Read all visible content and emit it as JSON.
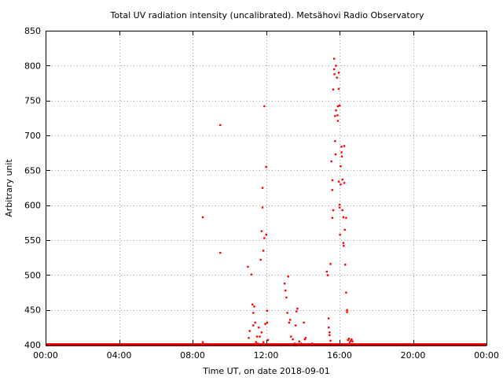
{
  "colors": {
    "series": "#ff0000",
    "grid": "#a0a0a0",
    "frame": "#000000",
    "background": "#ffffff"
  },
  "chart_data": {
    "type": "scatter",
    "title": "Total UV radiation intensity (uncalibrated). Metsähovi Radio Observatory",
    "xlabel": "Time UT, on date 2018-09-01",
    "ylabel": "Arbitrary unit",
    "x_unit": "hours UT",
    "xlim": [
      0,
      24
    ],
    "ylim": [
      400,
      850
    ],
    "grid": true,
    "legend": "none",
    "x_ticks": [
      {
        "value": 0,
        "label": "00:00"
      },
      {
        "value": 4,
        "label": "04:00"
      },
      {
        "value": 8,
        "label": "08:00"
      },
      {
        "value": 12,
        "label": "12:00"
      },
      {
        "value": 16,
        "label": "16:00"
      },
      {
        "value": 20,
        "label": "20:00"
      },
      {
        "value": 24,
        "label": "00:00"
      }
    ],
    "y_ticks": [
      {
        "value": 400,
        "label": "400"
      },
      {
        "value": 450,
        "label": "450"
      },
      {
        "value": 500,
        "label": "500"
      },
      {
        "value": 550,
        "label": "550"
      },
      {
        "value": 600,
        "label": "600"
      },
      {
        "value": 650,
        "label": "650"
      },
      {
        "value": 700,
        "label": "700"
      },
      {
        "value": 750,
        "label": "750"
      },
      {
        "value": 800,
        "label": "800"
      },
      {
        "value": 850,
        "label": "850"
      }
    ],
    "baseline": {
      "from_x": 0,
      "to_x": 24,
      "y": 400
    },
    "series": [
      {
        "points": [
          [
            8.55,
            583
          ],
          [
            8.55,
            404
          ],
          [
            9.5,
            715
          ],
          [
            9.5,
            532
          ],
          [
            11.0,
            512
          ],
          [
            11.05,
            410
          ],
          [
            11.1,
            420
          ],
          [
            11.2,
            501
          ],
          [
            11.25,
            458
          ],
          [
            11.3,
            428
          ],
          [
            11.3,
            446
          ],
          [
            11.35,
            455
          ],
          [
            11.4,
            432
          ],
          [
            11.45,
            404
          ],
          [
            11.5,
            412
          ],
          [
            11.55,
            402
          ],
          [
            11.6,
            425
          ],
          [
            11.7,
            522
          ],
          [
            11.75,
            563
          ],
          [
            11.8,
            597
          ],
          [
            11.8,
            625
          ],
          [
            11.85,
            535
          ],
          [
            11.9,
            553
          ],
          [
            11.9,
            742
          ],
          [
            11.95,
            430
          ],
          [
            12.0,
            655
          ],
          [
            12.0,
            558
          ],
          [
            12.05,
            432
          ],
          [
            12.05,
            449
          ],
          [
            11.65,
            412
          ],
          [
            11.75,
            418
          ],
          [
            12.1,
            407
          ],
          [
            11.85,
            404
          ],
          [
            13.0,
            488
          ],
          [
            13.05,
            478
          ],
          [
            13.1,
            468
          ],
          [
            13.15,
            446
          ],
          [
            13.2,
            498
          ],
          [
            13.25,
            432
          ],
          [
            13.3,
            436
          ],
          [
            13.35,
            412
          ],
          [
            13.45,
            408
          ],
          [
            13.55,
            402
          ],
          [
            13.6,
            428
          ],
          [
            13.65,
            448
          ],
          [
            13.7,
            452
          ],
          [
            13.8,
            405
          ],
          [
            13.9,
            402
          ],
          [
            14.05,
            432
          ],
          [
            14.1,
            408
          ],
          [
            14.15,
            410
          ],
          [
            14.5,
            402
          ],
          [
            14.9,
            401
          ],
          [
            15.3,
            505
          ],
          [
            15.35,
            500
          ],
          [
            15.4,
            438
          ],
          [
            15.4,
            425
          ],
          [
            15.45,
            418
          ],
          [
            15.45,
            414
          ],
          [
            15.5,
            516
          ],
          [
            15.5,
            406
          ],
          [
            15.55,
            663
          ],
          [
            15.6,
            636
          ],
          [
            15.6,
            622
          ],
          [
            15.6,
            582
          ],
          [
            15.65,
            593
          ],
          [
            15.65,
            766
          ],
          [
            15.7,
            810
          ],
          [
            15.7,
            795
          ],
          [
            15.72,
            788
          ],
          [
            15.75,
            692
          ],
          [
            15.75,
            728
          ],
          [
            15.78,
            673
          ],
          [
            15.8,
            736
          ],
          [
            15.8,
            800
          ],
          [
            15.85,
            783
          ],
          [
            15.88,
            729
          ],
          [
            15.9,
            742
          ],
          [
            15.9,
            721
          ],
          [
            15.95,
            790
          ],
          [
            15.95,
            767
          ],
          [
            15.95,
            634
          ],
          [
            16.0,
            743
          ],
          [
            16.0,
            601
          ],
          [
            16.0,
            597
          ],
          [
            16.02,
            558
          ],
          [
            16.05,
            656
          ],
          [
            16.05,
            630
          ],
          [
            16.1,
            676
          ],
          [
            16.1,
            684
          ],
          [
            16.12,
            670
          ],
          [
            16.15,
            637
          ],
          [
            16.15,
            593
          ],
          [
            16.2,
            583
          ],
          [
            16.2,
            546
          ],
          [
            16.22,
            542
          ],
          [
            16.25,
            685
          ],
          [
            16.25,
            632
          ],
          [
            16.28,
            565
          ],
          [
            16.3,
            515
          ],
          [
            16.35,
            582
          ],
          [
            16.35,
            475
          ],
          [
            16.4,
            450
          ],
          [
            16.4,
            447
          ],
          [
            16.45,
            407
          ],
          [
            16.5,
            409
          ],
          [
            16.55,
            404
          ],
          [
            16.6,
            406
          ],
          [
            16.65,
            408
          ],
          [
            16.7,
            405
          ]
        ]
      }
    ]
  }
}
